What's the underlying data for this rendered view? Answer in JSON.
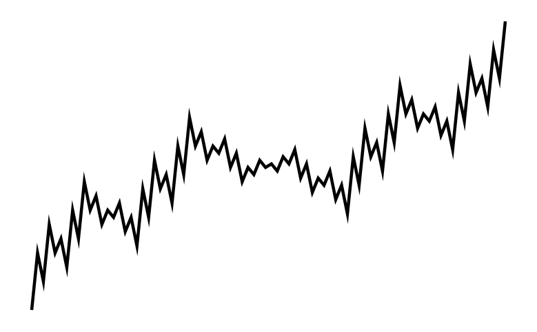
{
  "figure": {
    "kind": "fractal zigzag curve",
    "stroke_color": "#000000",
    "background_color": "#ffffff",
    "motif": [
      2,
      -1,
      2
    ],
    "iterations": 4
  }
}
